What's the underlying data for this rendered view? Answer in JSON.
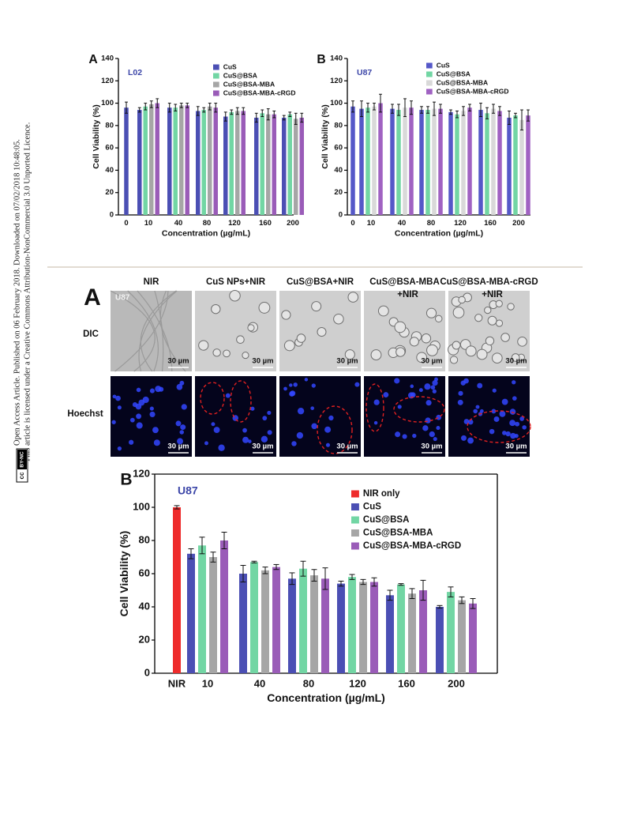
{
  "side_note": {
    "lines": [
      "Open Access Article. Published on 06 February 2018. Downloaded on 07/02/2018 10:48:05.",
      "This article is licensed under a Creative Commons Attribution-NonCommercial 3.0 Unported Licence."
    ],
    "badge": [
      "cc",
      "BY-NC"
    ]
  },
  "micrograph": {
    "panel": "A",
    "cell_line": "U87",
    "columns": [
      [
        "NIR"
      ],
      [
        "CuS NPs+NIR"
      ],
      [
        "CuS@BSA+NIR"
      ],
      [
        "CuS@BSA-MBA",
        "+NIR"
      ],
      [
        "CuS@BSA-MBA-cRGD",
        "+NIR"
      ]
    ],
    "rows": [
      "DIC",
      "Hoechst"
    ],
    "scale_bar": "30 µm"
  },
  "chart_data": [
    {
      "type": "bar",
      "panel": "A",
      "inset_label": "L02",
      "xlabel": "Concentration (µg/mL)",
      "ylabel": "Cell Viability (%)",
      "categories": [
        "0",
        "10",
        "40",
        "80",
        "120",
        "160",
        "200"
      ],
      "series": [
        {
          "name": "CuS",
          "color": "#4b4fb4",
          "values": [
            96,
            94,
            96,
            93,
            88,
            87,
            87
          ],
          "errors": [
            5,
            2,
            4,
            4,
            4,
            4,
            2
          ]
        },
        {
          "name": "CuS@BSA",
          "color": "#72d6a4",
          "values": [
            null,
            97,
            96,
            94,
            92,
            91,
            90
          ],
          "errors": [
            null,
            3,
            3,
            2,
            2,
            3,
            2
          ]
        },
        {
          "name": "CuS@BSA-MBA",
          "color": "#a6a6a6",
          "values": [
            null,
            99,
            98,
            97,
            93,
            90,
            86
          ],
          "errors": [
            null,
            3,
            2,
            3,
            3,
            5,
            5
          ]
        },
        {
          "name": "CuS@BSA-MBA-cRGD",
          "color": "#9a5cb8",
          "values": [
            null,
            100,
            98,
            96,
            93,
            90,
            87
          ],
          "errors": [
            null,
            4,
            2,
            4,
            3,
            3,
            4
          ]
        }
      ],
      "ylim": [
        0,
        140
      ],
      "yticks": [
        0,
        20,
        40,
        60,
        80,
        100,
        120,
        140
      ]
    },
    {
      "type": "bar",
      "panel": "B",
      "inset_label": "U87",
      "xlabel": "Concentration (µg/mL)",
      "ylabel": "Cell Viability (%)",
      "categories": [
        "0",
        "10",
        "40",
        "80",
        "120",
        "160",
        "200"
      ],
      "series": [
        {
          "name": "CuS",
          "color": "#5558c8",
          "values": [
            97,
            95,
            95,
            94,
            92,
            94,
            87
          ],
          "errors": [
            5,
            7,
            4,
            3,
            2,
            6,
            6
          ]
        },
        {
          "name": "CuS@BSA",
          "color": "#72d6a4",
          "values": [
            null,
            96,
            94,
            94,
            90,
            91,
            89
          ],
          "errors": [
            null,
            4,
            5,
            3,
            3,
            5,
            2
          ]
        },
        {
          "name": "CuS@BSA-MBA",
          "color": "#d9d9d9",
          "values": [
            null,
            97,
            96,
            95,
            93,
            95,
            85
          ],
          "errors": [
            null,
            3,
            8,
            6,
            4,
            4,
            9
          ]
        },
        {
          "name": "CuS@BSA-MBA-cRGD",
          "color": "#a062c2",
          "values": [
            null,
            100,
            96,
            95,
            96,
            93,
            89
          ],
          "errors": [
            null,
            8,
            6,
            4,
            3,
            4,
            5
          ]
        }
      ],
      "ylim": [
        0,
        140
      ],
      "yticks": [
        0,
        20,
        40,
        60,
        80,
        100,
        120,
        140
      ]
    },
    {
      "type": "bar",
      "panel": "B",
      "inset_label": "U87",
      "xlabel": "Concentration (µg/mL)",
      "ylabel": "Cell Viability (%)",
      "categories": [
        "NIR",
        "10",
        "40",
        "80",
        "120",
        "160",
        "200"
      ],
      "series": [
        {
          "name": "NIR only",
          "color": "#ee2b2b",
          "values": [
            100,
            null,
            null,
            null,
            null,
            null,
            null
          ],
          "errors": [
            1,
            null,
            null,
            null,
            null,
            null,
            null
          ]
        },
        {
          "name": "CuS",
          "color": "#4b4fb4",
          "values": [
            null,
            72,
            60,
            57,
            54,
            47,
            40
          ],
          "errors": [
            null,
            3,
            5,
            3.5,
            1.5,
            3,
            0.8
          ]
        },
        {
          "name": "CuS@BSA",
          "color": "#72d6a4",
          "values": [
            null,
            77,
            67,
            63,
            58,
            53.5,
            49
          ],
          "errors": [
            null,
            5,
            0.5,
            4.5,
            1.5,
            0.5,
            3
          ]
        },
        {
          "name": "CuS@BSA-MBA",
          "color": "#a6a6a6",
          "values": [
            null,
            70,
            62,
            59,
            55,
            48,
            44
          ],
          "errors": [
            null,
            3,
            2,
            3.5,
            1.5,
            3,
            2
          ]
        },
        {
          "name": "CuS@BSA-MBA-cRGD",
          "color": "#9a5cb8",
          "values": [
            null,
            80,
            64,
            57,
            55,
            50,
            42
          ],
          "errors": [
            null,
            5,
            1.5,
            6.5,
            2.5,
            6,
            3
          ]
        }
      ],
      "ylim": [
        0,
        120
      ],
      "yticks": [
        0,
        20,
        40,
        60,
        80,
        100,
        120
      ]
    }
  ]
}
